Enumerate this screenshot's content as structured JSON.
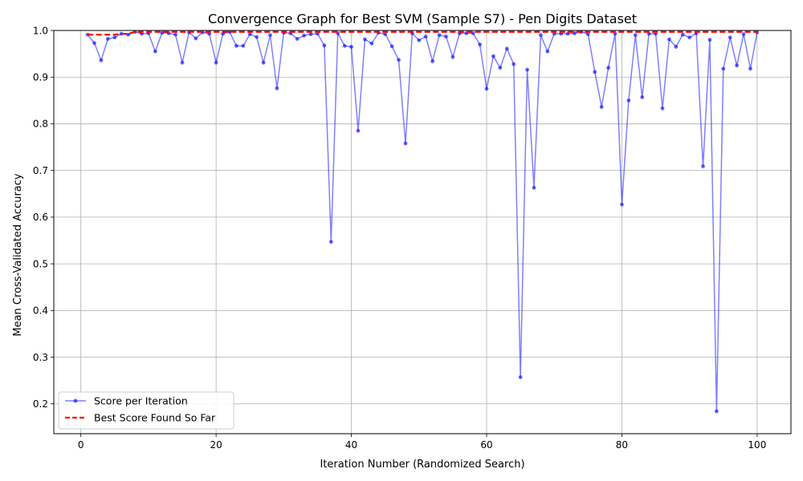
{
  "chart_data": {
    "type": "line",
    "title": "Convergence Graph for Best SVM (Sample S7) - Pen Digits Dataset",
    "xlabel": "Iteration Number (Randomized Search)",
    "ylabel": "Mean Cross-Validated Accuracy",
    "xlim": [
      -4,
      105
    ],
    "ylim": [
      0.136,
      1.0
    ],
    "xticks": [
      0,
      20,
      40,
      60,
      80,
      100
    ],
    "yticks": [
      0.2,
      0.3,
      0.4,
      0.5,
      0.6,
      0.7,
      0.8,
      0.9,
      1.0
    ],
    "xtick_labels": [
      "0",
      "20",
      "40",
      "60",
      "80",
      "100"
    ],
    "ytick_labels": [
      "0.2",
      "0.3",
      "0.4",
      "0.5",
      "0.6",
      "0.7",
      "0.8",
      "0.9",
      "1.0"
    ],
    "grid": true,
    "legend_position": "lower-left",
    "x": [
      1,
      2,
      3,
      4,
      5,
      6,
      7,
      8,
      9,
      10,
      11,
      12,
      13,
      14,
      15,
      16,
      17,
      18,
      19,
      20,
      21,
      22,
      23,
      24,
      25,
      26,
      27,
      28,
      29,
      30,
      31,
      32,
      33,
      34,
      35,
      36,
      37,
      38,
      39,
      40,
      41,
      42,
      43,
      44,
      45,
      46,
      47,
      48,
      49,
      50,
      51,
      52,
      53,
      54,
      55,
      56,
      57,
      58,
      59,
      60,
      61,
      62,
      63,
      64,
      65,
      66,
      67,
      68,
      69,
      70,
      71,
      72,
      73,
      74,
      75,
      76,
      77,
      78,
      79,
      80,
      81,
      82,
      83,
      84,
      85,
      86,
      87,
      88,
      89,
      90,
      91,
      92,
      93,
      94,
      95,
      96,
      97,
      98,
      99,
      100
    ],
    "series": [
      {
        "name": "Score per Iteration",
        "color": "#0000ff",
        "style": "line-with-markers",
        "values": [
          0.991,
          0.973,
          0.936,
          0.982,
          0.985,
          0.993,
          0.991,
          0.997,
          0.993,
          0.994,
          0.955,
          0.995,
          0.994,
          0.991,
          0.931,
          0.996,
          0.983,
          0.996,
          0.993,
          0.931,
          0.993,
          0.997,
          0.967,
          0.967,
          0.992,
          0.986,
          0.931,
          0.99,
          0.876,
          0.995,
          0.994,
          0.982,
          0.989,
          0.992,
          0.993,
          0.968,
          0.547,
          0.994,
          0.967,
          0.965,
          0.785,
          0.981,
          0.972,
          0.995,
          0.992,
          0.966,
          0.937,
          0.758,
          0.994,
          0.979,
          0.987,
          0.934,
          0.99,
          0.987,
          0.943,
          0.994,
          0.994,
          0.994,
          0.97,
          0.875,
          0.945,
          0.92,
          0.961,
          0.928,
          0.257,
          0.916,
          0.663,
          0.99,
          0.955,
          0.993,
          0.993,
          0.993,
          0.994,
          0.997,
          0.992,
          0.911,
          0.836,
          0.92,
          0.993,
          0.627,
          0.85,
          0.99,
          0.857,
          0.993,
          0.993,
          0.833,
          0.981,
          0.965,
          0.991,
          0.985,
          0.994,
          0.709,
          0.98,
          0.184,
          0.918,
          0.985,
          0.925,
          0.992,
          0.918,
          0.996
        ]
      },
      {
        "name": "Best Score Found So Far",
        "color": "#ff0000",
        "style": "dashed",
        "values": [
          0.991,
          0.991,
          0.991,
          0.991,
          0.991,
          0.993,
          0.993,
          0.997,
          0.997,
          0.997,
          0.997,
          0.997,
          0.997,
          0.997,
          0.997,
          0.997,
          0.997,
          0.997,
          0.997,
          0.997,
          0.997,
          0.997,
          0.997,
          0.997,
          0.997,
          0.997,
          0.997,
          0.997,
          0.997,
          0.997,
          0.997,
          0.997,
          0.997,
          0.997,
          0.997,
          0.997,
          0.997,
          0.997,
          0.997,
          0.997,
          0.997,
          0.997,
          0.997,
          0.997,
          0.997,
          0.997,
          0.997,
          0.997,
          0.997,
          0.997,
          0.997,
          0.997,
          0.997,
          0.997,
          0.997,
          0.997,
          0.997,
          0.997,
          0.997,
          0.997,
          0.997,
          0.997,
          0.997,
          0.997,
          0.997,
          0.997,
          0.997,
          0.997,
          0.997,
          0.997,
          0.997,
          0.997,
          0.997,
          0.997,
          0.997,
          0.997,
          0.997,
          0.997,
          0.997,
          0.997,
          0.997,
          0.997,
          0.997,
          0.997,
          0.997,
          0.997,
          0.997,
          0.997,
          0.997,
          0.997,
          0.997,
          0.997,
          0.997,
          0.997,
          0.997,
          0.997,
          0.997,
          0.997,
          0.997,
          0.997
        ]
      }
    ]
  }
}
